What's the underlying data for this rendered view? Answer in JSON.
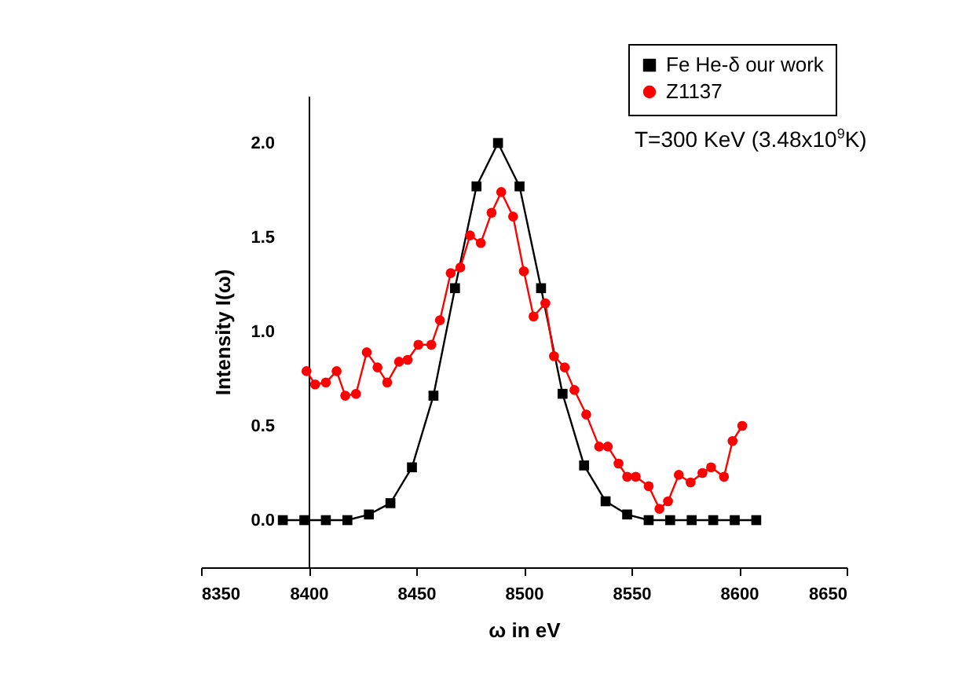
{
  "chart_data": {
    "type": "line",
    "xlabel": "ω in eV",
    "ylabel": "Intensity I(ω)",
    "xlim": [
      8350,
      8650
    ],
    "xticks": [
      8350,
      8400,
      8450,
      8500,
      8550,
      8600,
      8650
    ],
    "ylim": [
      -0.25,
      2.25
    ],
    "yticks": [
      {
        "value": 0,
        "label": "0.0"
      },
      0.5,
      {
        "value": 1,
        "label": "1.0"
      },
      1.5,
      {
        "value": 2,
        "label": "2.0"
      }
    ],
    "legend": "top right",
    "grid": false,
    "line_style": "solid",
    "annotations": [
      "T=300 KeV (3.48x10$^{9}$K)"
    ],
    "series": [
      {
        "name": "Fe He-δ our work",
        "color": "#000000",
        "marker": "square",
        "x": [
          8388,
          8398,
          8408,
          8418,
          8428,
          8438,
          8448,
          8458,
          8468,
          8478,
          8488,
          8498,
          8508,
          8518,
          8528,
          8538,
          8548,
          8558,
          8568,
          8578,
          8588,
          8598,
          8608
        ],
        "values": [
          0,
          0,
          0,
          0,
          0.03,
          0.09,
          0.28,
          0.66,
          1.23,
          1.77,
          2.0,
          1.77,
          1.23,
          0.67,
          0.29,
          0.1,
          0.03,
          0,
          0,
          0,
          0,
          0,
          0
        ]
      },
      {
        "name": "Z1137",
        "color": "#ff0000",
        "marker": "circle",
        "x": [
          8399,
          8403,
          8408,
          8413,
          8417,
          8422,
          8427,
          8432,
          8436.5,
          8442,
          8446,
          8451,
          8457,
          8461,
          8466,
          8470.5,
          8475,
          8480,
          8485,
          8489.5,
          8495,
          8500,
          8504.5,
          8510,
          8514,
          8519,
          8523.5,
          8529,
          8535,
          8539,
          8544,
          8548,
          8552,
          8558,
          8563,
          8567,
          8572,
          8577.5,
          8583,
          8587,
          8593,
          8597,
          8601.5
        ],
        "values": [
          0.79,
          0.72,
          0.73,
          0.79,
          0.66,
          0.67,
          0.89,
          0.81,
          0.73,
          0.84,
          0.85,
          0.93,
          0.93,
          1.06,
          1.31,
          1.34,
          1.51,
          1.47,
          1.63,
          1.74,
          1.61,
          1.32,
          1.08,
          1.15,
          0.87,
          0.81,
          0.69,
          0.56,
          0.39,
          0.39,
          0.3,
          0.23,
          0.23,
          0.18,
          0.06,
          0.1,
          0.24,
          0.2,
          0.25,
          0.28,
          0.23,
          0.42,
          0.5
        ]
      }
    ]
  }
}
